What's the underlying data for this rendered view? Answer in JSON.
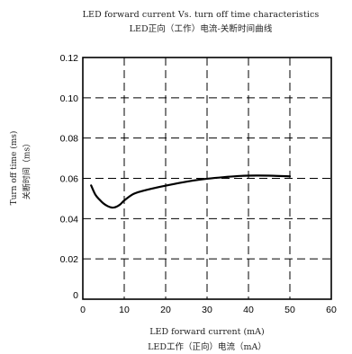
{
  "chart_data": {
    "type": "line",
    "title": "LED forward current Vs. turn off time characteristics",
    "subtitle": "LED正向（工作）电流-关断时间曲线",
    "xlabel": "LED forward current (mA)",
    "xlabel_cn": "LED工作（正向）电流（mA）",
    "ylabel": "Turn off time (ms)",
    "ylabel_cn": "关断时间（ms）",
    "xlim": [
      0,
      60
    ],
    "ylim": [
      0,
      0.12
    ],
    "xticks": [
      0,
      10,
      20,
      30,
      40,
      50,
      60
    ],
    "yticks": [
      0,
      0.02,
      0.04,
      0.06,
      0.08,
      0.1,
      0.12
    ],
    "ytick_labels": [
      "0",
      "0.02",
      "0.04",
      "0.06",
      "0.08",
      "0.10",
      "0.12"
    ],
    "grid": true,
    "grid_style": "dashed",
    "series": [
      {
        "values": [
          [
            2,
            0.0565
          ],
          [
            3,
            0.052
          ],
          [
            4,
            0.0495
          ],
          [
            5,
            0.0475
          ],
          [
            6,
            0.0462
          ],
          [
            7,
            0.0455
          ],
          [
            8,
            0.0458
          ],
          [
            9,
            0.047
          ],
          [
            10,
            0.049
          ],
          [
            12,
            0.052
          ],
          [
            14,
            0.0535
          ],
          [
            18,
            0.0555
          ],
          [
            22,
            0.0572
          ],
          [
            26,
            0.0587
          ],
          [
            30,
            0.0598
          ],
          [
            34,
            0.0606
          ],
          [
            38,
            0.0612
          ],
          [
            42,
            0.0614
          ],
          [
            46,
            0.0613
          ],
          [
            50,
            0.061
          ]
        ],
        "color": "#000000"
      }
    ]
  }
}
